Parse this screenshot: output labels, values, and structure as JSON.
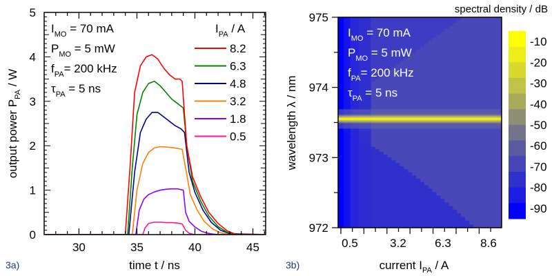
{
  "chart_data": [
    {
      "type": "line",
      "panel_label": "3a)",
      "xlabel": "time t / ns",
      "ylabel_main": "output power P",
      "ylabel_sub": "PA",
      "ylabel_unit": " / W",
      "xlim": [
        27,
        46.1
      ],
      "ylim": [
        0,
        5
      ],
      "xticks": [
        30,
        35,
        40,
        45
      ],
      "yticks": [
        0,
        1,
        2,
        3,
        4,
        5
      ],
      "annotations": [
        {
          "main": "I",
          "sub": "MO",
          "rest": " = 70 mA"
        },
        {
          "main": "P",
          "sub": "MO",
          "rest": " = 5 mW"
        },
        {
          "main": "f",
          "sub": "PA",
          "rest": "= 200 kHz"
        },
        {
          "main": "τ",
          "sub": "PA",
          "rest": " = 5 ns"
        }
      ],
      "legend": {
        "title_main": "I",
        "title_sub": "PA",
        "title_rest": " / A",
        "placement": "top-right"
      },
      "series": [
        {
          "name": "8.2",
          "color": "#ff0000",
          "x": [
            27,
            34.0,
            34.4,
            34.8,
            35.3,
            35.8,
            36.3,
            36.8,
            37.3,
            37.8,
            38.3,
            38.7,
            38.9,
            39.3,
            39.8,
            40.5,
            41.2,
            42.0,
            42.8,
            43.5,
            46.1
          ],
          "y": [
            0,
            0,
            1.5,
            3.2,
            3.8,
            4.0,
            4.05,
            3.95,
            3.75,
            3.6,
            3.5,
            3.5,
            3.45,
            2.0,
            1.3,
            0.85,
            0.5,
            0.25,
            0.08,
            0.01,
            0
          ]
        },
        {
          "name": "6.3",
          "color": "#008000",
          "x": [
            27,
            34.2,
            34.6,
            35.0,
            35.5,
            36.0,
            36.5,
            37.0,
            37.5,
            38.0,
            38.5,
            39.0,
            39.3,
            39.8,
            40.5,
            41.2,
            42.0,
            42.8,
            43.5,
            46.1
          ],
          "y": [
            0,
            0,
            1.5,
            2.7,
            3.2,
            3.4,
            3.45,
            3.35,
            3.2,
            3.05,
            2.95,
            2.85,
            2.0,
            1.2,
            0.75,
            0.42,
            0.18,
            0.05,
            0.01,
            0
          ]
        },
        {
          "name": "4.8",
          "color": "#00008b",
          "x": [
            27,
            34.3,
            34.8,
            35.3,
            35.8,
            36.3,
            36.8,
            37.3,
            37.8,
            38.3,
            38.8,
            39.1,
            39.5,
            40.0,
            40.7,
            41.4,
            42.2,
            43.0,
            46.1
          ],
          "y": [
            0,
            0,
            1.4,
            2.3,
            2.6,
            2.75,
            2.75,
            2.65,
            2.55,
            2.45,
            2.38,
            2.3,
            1.4,
            0.95,
            0.55,
            0.28,
            0.1,
            0.02,
            0
          ]
        },
        {
          "name": "3.2",
          "color": "#ff7f00",
          "x": [
            27,
            34.6,
            35.0,
            35.5,
            36.0,
            36.5,
            37.0,
            37.5,
            38.0,
            38.5,
            38.9,
            39.2,
            39.6,
            40.2,
            40.8,
            41.5,
            42.2,
            43.0,
            46.1
          ],
          "y": [
            0,
            0,
            1.0,
            1.6,
            1.85,
            1.95,
            1.98,
            1.97,
            1.96,
            1.94,
            1.92,
            1.5,
            0.9,
            0.55,
            0.3,
            0.13,
            0.04,
            0.0,
            0
          ]
        },
        {
          "name": "1.8",
          "color": "#8b00ff",
          "x": [
            27,
            34.9,
            35.2,
            35.6,
            36.0,
            36.5,
            37.0,
            37.5,
            38.0,
            38.5,
            39.0,
            39.2,
            39.5,
            40.0,
            40.6,
            41.3,
            42.0,
            46.1
          ],
          "y": [
            0,
            0,
            0.55,
            0.8,
            0.9,
            0.96,
            1.0,
            1.02,
            1.03,
            1.03,
            1.0,
            0.5,
            0.3,
            0.17,
            0.07,
            0.02,
            0,
            0
          ]
        },
        {
          "name": "0.5",
          "color": "#ff1493",
          "x": [
            27,
            35.5,
            35.7,
            36.0,
            36.5,
            37.0,
            37.5,
            38.0,
            38.5,
            38.9,
            39.2,
            39.5,
            40.0,
            46.1
          ],
          "y": [
            0,
            0,
            0.15,
            0.25,
            0.28,
            0.28,
            0.27,
            0.27,
            0.26,
            0.24,
            0.1,
            0.03,
            0,
            0
          ]
        }
      ]
    },
    {
      "type": "heatmap",
      "panel_label": "3b)",
      "xlabel_main": "current  I",
      "xlabel_sub": "PA",
      "xlabel_unit": " / A",
      "ylabel": "wavelength λ / nm",
      "xticklabels": [
        "0.5",
        "3.2",
        "6.3",
        "8.6"
      ],
      "yticks": [
        972,
        973,
        974,
        975
      ],
      "ylim": [
        972,
        975
      ],
      "annotations": [
        {
          "main": "I",
          "sub": "MO",
          "rest": " = 70 mA"
        },
        {
          "main": "P",
          "sub": "MO",
          "rest": " = 5 mW"
        },
        {
          "main": "f",
          "sub": "PA",
          "rest": "= 200 kHz"
        },
        {
          "main": "τ",
          "sub": "PA",
          "rest": " = 5 ns"
        }
      ],
      "peak_wavelength_nm": 973.55,
      "colorbar": {
        "title": "spectral density / dB",
        "ticks": [
          -10,
          -20,
          -30,
          -40,
          -50,
          -60,
          -70,
          -80,
          -90
        ],
        "range": [
          -95,
          -5
        ],
        "colors": [
          "#ffff00",
          "#eded1c",
          "#d8d82e",
          "#c2c248",
          "#a9a95c",
          "#8e8e74",
          "#73738a",
          "#5a5aa0",
          "#4545b8",
          "#3030cc",
          "#1c1ce4",
          "#0000ff"
        ]
      },
      "regions": {
        "background_far_db": -68,
        "background_mid_db": -75,
        "background_low_db": -82,
        "edge_db": -90,
        "peak_db": -10
      }
    }
  ]
}
